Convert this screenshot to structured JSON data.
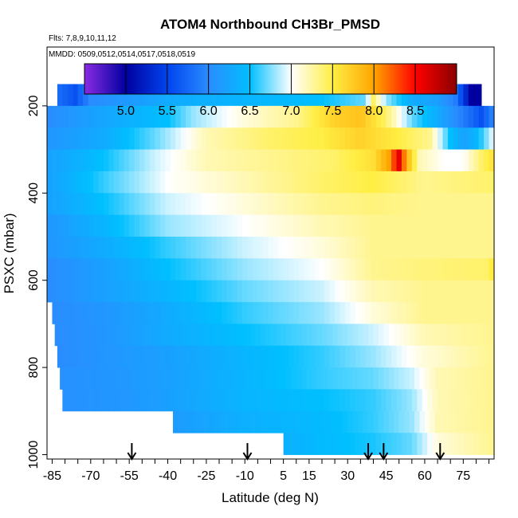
{
  "chart_data": {
    "type": "heatmap",
    "title": "ATOM4 Northbound CH3Br_PMSD",
    "flights_label": "Flts: 7,8,9,10,11,12",
    "dates_label": "MMDD: 0509,0512,0514,0517,0518,0519",
    "xlabel": "Latitude (deg N)",
    "ylabel": "PSXC (mbar)",
    "xlim": [
      -87,
      87
    ],
    "ylim": [
      1010,
      65
    ],
    "x_ticks": [
      "-85",
      "-70",
      "-55",
      "-40",
      "-25",
      "-10",
      "5",
      "15",
      "30",
      "45",
      "60",
      "75"
    ],
    "x_tick_values": [
      -85,
      -70,
      -55,
      -40,
      -25,
      -10,
      5,
      15,
      30,
      45,
      60,
      75
    ],
    "y_ticks": [
      "200",
      "400",
      "600",
      "800",
      "1000"
    ],
    "y_tick_values": [
      200,
      400,
      600,
      800,
      1000
    ],
    "colorbar": {
      "min": 4.5,
      "max": 9.0,
      "tick_labels": [
        "5.0",
        "5.5",
        "6.0",
        "6.5",
        "7.0",
        "7.5",
        "8.0",
        "8.5"
      ],
      "tick_values": [
        5.0,
        5.5,
        6.0,
        6.5,
        7.0,
        7.5,
        8.0,
        8.5
      ],
      "colors": [
        "#8a2be2",
        "#0000a0",
        "#0044ee",
        "#2a8cff",
        "#00bfff",
        "#ffffff",
        "#ffee44",
        "#ffa500",
        "#ff0000",
        "#8b0000"
      ]
    },
    "arrows_latitude": [
      -54,
      -9,
      38,
      44,
      66
    ],
    "layers": [
      {
        "p_top": 150,
        "p_bot": 200,
        "lat_start": -83,
        "lat_end": 82,
        "nodes": [
          [
            -83,
            5.8
          ],
          [
            -76,
            5.6
          ],
          [
            -70,
            6.0
          ],
          [
            -40,
            6.3
          ],
          [
            -10,
            6.4
          ],
          [
            20,
            6.5
          ],
          [
            37,
            6.7
          ],
          [
            40,
            7.4
          ],
          [
            45,
            6.8
          ],
          [
            55,
            6.3
          ],
          [
            65,
            6.2
          ],
          [
            72,
            5.9
          ],
          [
            78,
            5.0
          ],
          [
            82,
            5.0
          ]
        ]
      },
      {
        "p_top": 200,
        "p_bot": 250,
        "lat_start": -87,
        "lat_end": 87,
        "nodes": [
          [
            -87,
            6.0
          ],
          [
            -70,
            6.2
          ],
          [
            -40,
            6.5
          ],
          [
            -30,
            6.8
          ],
          [
            -10,
            7.1
          ],
          [
            10,
            7.3
          ],
          [
            25,
            7.7
          ],
          [
            35,
            7.8
          ],
          [
            45,
            7.4
          ],
          [
            55,
            6.7
          ],
          [
            65,
            6.3
          ],
          [
            75,
            5.9
          ],
          [
            82,
            5.6
          ],
          [
            87,
            6.0
          ]
        ]
      },
      {
        "p_top": 250,
        "p_bot": 300,
        "lat_start": -87,
        "lat_end": 87,
        "nodes": [
          [
            -87,
            6.1
          ],
          [
            -65,
            6.3
          ],
          [
            -45,
            6.7
          ],
          [
            -25,
            7.2
          ],
          [
            0,
            7.4
          ],
          [
            20,
            7.5
          ],
          [
            35,
            7.7
          ],
          [
            50,
            7.5
          ],
          [
            62,
            7.3
          ],
          [
            70,
            6.5
          ],
          [
            75,
            6.2
          ],
          [
            80,
            6.4
          ],
          [
            87,
            7.0
          ]
        ]
      },
      {
        "p_top": 300,
        "p_bot": 350,
        "lat_start": -87,
        "lat_end": 87,
        "nodes": [
          [
            -87,
            6.2
          ],
          [
            -65,
            6.5
          ],
          [
            -45,
            6.9
          ],
          [
            -25,
            7.2
          ],
          [
            0,
            7.3
          ],
          [
            25,
            7.4
          ],
          [
            40,
            7.6
          ],
          [
            46,
            8.0
          ],
          [
            50,
            8.6
          ],
          [
            53,
            7.9
          ],
          [
            58,
            7.2
          ],
          [
            68,
            7.0
          ],
          [
            75,
            7.0
          ],
          [
            82,
            7.4
          ],
          [
            87,
            7.6
          ]
        ]
      },
      {
        "p_top": 350,
        "p_bot": 400,
        "lat_start": -87,
        "lat_end": 87,
        "nodes": [
          [
            -87,
            6.2
          ],
          [
            -65,
            6.6
          ],
          [
            -40,
            7.0
          ],
          [
            -10,
            7.2
          ],
          [
            20,
            7.4
          ],
          [
            40,
            7.5
          ],
          [
            60,
            7.3
          ],
          [
            87,
            7.4
          ]
        ]
      },
      {
        "p_top": 400,
        "p_bot": 450,
        "lat_start": -87,
        "lat_end": 87,
        "nodes": [
          [
            -87,
            6.2
          ],
          [
            -65,
            6.5
          ],
          [
            -40,
            6.9
          ],
          [
            -10,
            7.1
          ],
          [
            20,
            7.3
          ],
          [
            40,
            7.35
          ],
          [
            60,
            7.3
          ],
          [
            87,
            7.3
          ]
        ]
      },
      {
        "p_top": 450,
        "p_bot": 500,
        "lat_start": -87,
        "lat_end": 87,
        "nodes": [
          [
            -87,
            6.1
          ],
          [
            -65,
            6.4
          ],
          [
            -40,
            6.8
          ],
          [
            -10,
            7.0
          ],
          [
            20,
            7.2
          ],
          [
            40,
            7.3
          ],
          [
            60,
            7.3
          ],
          [
            87,
            7.3
          ]
        ]
      },
      {
        "p_top": 500,
        "p_bot": 550,
        "lat_start": -87,
        "lat_end": 87,
        "nodes": [
          [
            -87,
            6.1
          ],
          [
            -65,
            6.3
          ],
          [
            -40,
            6.6
          ],
          [
            -10,
            6.9
          ],
          [
            20,
            7.1
          ],
          [
            40,
            7.3
          ],
          [
            60,
            7.3
          ],
          [
            87,
            7.3
          ]
        ]
      },
      {
        "p_top": 550,
        "p_bot": 600,
        "lat_start": -87,
        "lat_end": 87,
        "nodes": [
          [
            -87,
            6.0
          ],
          [
            -65,
            6.2
          ],
          [
            -40,
            6.5
          ],
          [
            -10,
            6.8
          ],
          [
            20,
            7.0
          ],
          [
            40,
            7.3
          ],
          [
            60,
            7.35
          ],
          [
            85,
            7.4
          ],
          [
            87,
            7.6
          ]
        ]
      },
      {
        "p_top": 600,
        "p_bot": 650,
        "lat_start": -87,
        "lat_end": 87,
        "nodes": [
          [
            -87,
            6.0
          ],
          [
            -65,
            6.2
          ],
          [
            -40,
            6.4
          ],
          [
            -10,
            6.7
          ],
          [
            20,
            6.9
          ],
          [
            40,
            7.2
          ],
          [
            60,
            7.3
          ],
          [
            87,
            7.3
          ]
        ]
      },
      {
        "p_top": 650,
        "p_bot": 700,
        "lat_start": -85,
        "lat_end": 87,
        "nodes": [
          [
            -85,
            6.0
          ],
          [
            -65,
            6.1
          ],
          [
            -40,
            6.3
          ],
          [
            -10,
            6.6
          ],
          [
            20,
            6.8
          ],
          [
            40,
            7.1
          ],
          [
            60,
            7.3
          ],
          [
            87,
            7.3
          ]
        ]
      },
      {
        "p_top": 700,
        "p_bot": 750,
        "lat_start": -84,
        "lat_end": 87,
        "nodes": [
          [
            -84,
            6.0
          ],
          [
            -65,
            6.1
          ],
          [
            -40,
            6.3
          ],
          [
            -10,
            6.5
          ],
          [
            20,
            6.7
          ],
          [
            40,
            6.9
          ],
          [
            60,
            7.2
          ],
          [
            87,
            7.3
          ]
        ]
      },
      {
        "p_top": 750,
        "p_bot": 800,
        "lat_start": -83,
        "lat_end": 87,
        "nodes": [
          [
            -83,
            6.0
          ],
          [
            -65,
            6.1
          ],
          [
            -40,
            6.2
          ],
          [
            -10,
            6.4
          ],
          [
            20,
            6.6
          ],
          [
            40,
            6.8
          ],
          [
            60,
            7.1
          ],
          [
            87,
            7.3
          ]
        ]
      },
      {
        "p_top": 800,
        "p_bot": 850,
        "lat_start": -82,
        "lat_end": 87,
        "nodes": [
          [
            -82,
            6.05
          ],
          [
            -60,
            6.1
          ],
          [
            -40,
            6.2
          ],
          [
            -10,
            6.4
          ],
          [
            20,
            6.6
          ],
          [
            40,
            6.7
          ],
          [
            55,
            6.9
          ],
          [
            65,
            7.2
          ],
          [
            87,
            7.3
          ]
        ]
      },
      {
        "p_top": 850,
        "p_bot": 900,
        "lat_start": -81,
        "lat_end": 87,
        "nodes": [
          [
            -81,
            6.05
          ],
          [
            -60,
            6.1
          ],
          [
            -40,
            6.2
          ],
          [
            -10,
            6.4
          ],
          [
            20,
            6.5
          ],
          [
            40,
            6.6
          ],
          [
            55,
            6.8
          ],
          [
            65,
            7.2
          ],
          [
            87,
            7.3
          ]
        ]
      },
      {
        "p_top": 900,
        "p_bot": 950,
        "lat_start": -38,
        "lat_end": 87,
        "nodes": [
          [
            -38,
            6.15
          ],
          [
            -10,
            6.35
          ],
          [
            20,
            6.45
          ],
          [
            40,
            6.6
          ],
          [
            55,
            6.8
          ],
          [
            65,
            7.2
          ],
          [
            87,
            7.3
          ]
        ]
      },
      {
        "p_top": 950,
        "p_bot": 1000,
        "lat_start": 5,
        "lat_end": 87,
        "nodes": [
          [
            5,
            6.35
          ],
          [
            20,
            6.45
          ],
          [
            40,
            6.55
          ],
          [
            55,
            6.7
          ],
          [
            65,
            7.1
          ],
          [
            87,
            7.3
          ]
        ]
      }
    ]
  }
}
